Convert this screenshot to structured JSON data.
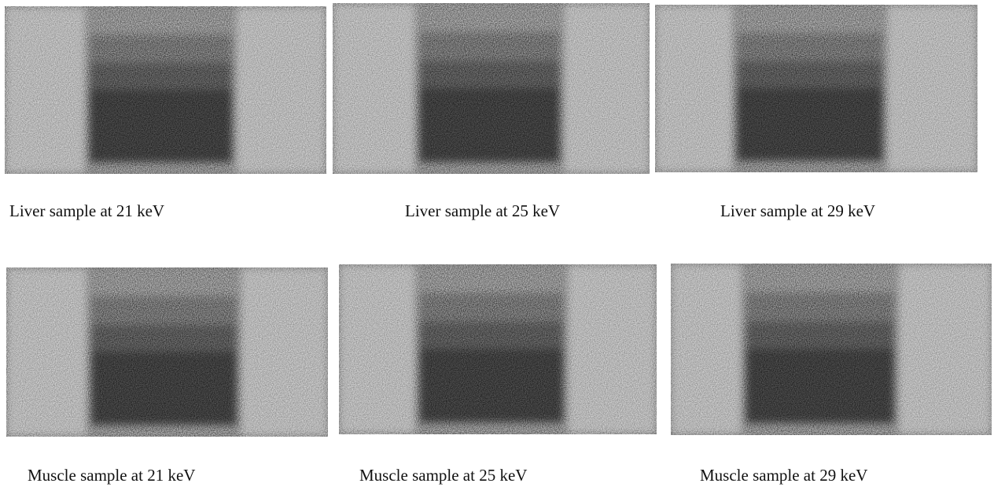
{
  "panels": [
    {
      "caption": "Liver sample at 21 keV"
    },
    {
      "caption": "Liver sample at 25 keV"
    },
    {
      "caption": "Liver sample at 29 keV"
    },
    {
      "caption": "Muscle sample at 21 keV"
    },
    {
      "caption": "Muscle sample at 25 keV"
    },
    {
      "caption": "Muscle sample at 29 keV"
    }
  ]
}
